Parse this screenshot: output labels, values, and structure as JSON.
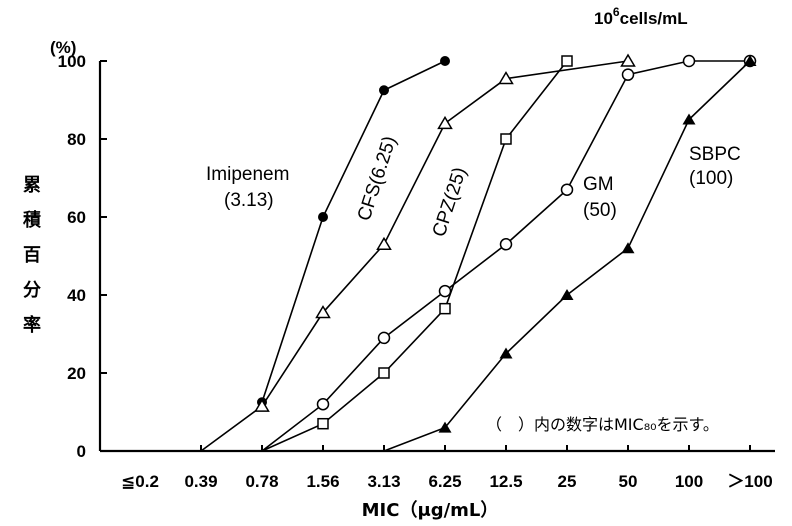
{
  "chart_data": {
    "type": "line",
    "title": "",
    "condition": "10",
    "condition_exp": "6",
    "condition_unit": "cells/mL",
    "y_unit": "(%)",
    "ylabel": [
      "累",
      "積",
      "百",
      "分",
      "率"
    ],
    "xlabel": "MIC（μg/mL）",
    "categories": [
      "≦0.2",
      "0.39",
      "0.78",
      "1.56",
      "3.13",
      "6.25",
      "12.5",
      "25",
      "50",
      "100",
      "＞100"
    ],
    "yticks": [
      "0",
      "20",
      "40",
      "60",
      "80",
      "100"
    ],
    "ylim": [
      0,
      100
    ],
    "grid": false,
    "note": "（　）内の数字はMIC₈₀を示す。",
    "series": [
      {
        "name": "Imipenem",
        "label_value": "(3.13)",
        "marker": "filled-circle",
        "points": [
          {
            "x": 2,
            "y": 12.5
          },
          {
            "x": 3,
            "y": 60
          },
          {
            "x": 4,
            "y": 92.5
          },
          {
            "x": 5,
            "y": 100
          }
        ]
      },
      {
        "name": "CFS",
        "label_value": "(6.25)",
        "marker": "open-triangle",
        "points": [
          {
            "x": 1,
            "y": 0
          },
          {
            "x": 2,
            "y": 11.5
          },
          {
            "x": 3,
            "y": 35.5
          },
          {
            "x": 4,
            "y": 53
          },
          {
            "x": 5,
            "y": 84
          },
          {
            "x": 6,
            "y": 95.5
          },
          {
            "x": 8,
            "y": 100
          }
        ]
      },
      {
        "name": "CPZ",
        "label_value": "(25)",
        "marker": "open-square",
        "points": [
          {
            "x": 2,
            "y": 0
          },
          {
            "x": 3,
            "y": 7
          },
          {
            "x": 4,
            "y": 20
          },
          {
            "x": 5,
            "y": 36.5
          },
          {
            "x": 6,
            "y": 80
          },
          {
            "x": 7,
            "y": 100
          }
        ]
      },
      {
        "name": "GM",
        "label_value": "(50)",
        "marker": "open-circle",
        "points": [
          {
            "x": 2,
            "y": 0
          },
          {
            "x": 3,
            "y": 12
          },
          {
            "x": 4,
            "y": 29
          },
          {
            "x": 5,
            "y": 41
          },
          {
            "x": 6,
            "y": 53
          },
          {
            "x": 7,
            "y": 67
          },
          {
            "x": 8,
            "y": 96.5
          },
          {
            "x": 9,
            "y": 100
          },
          {
            "x": 10,
            "y": 100
          }
        ]
      },
      {
        "name": "SBPC",
        "label_value": "(100)",
        "marker": "filled-triangle",
        "points": [
          {
            "x": 4,
            "y": 0
          },
          {
            "x": 5,
            "y": 6
          },
          {
            "x": 6,
            "y": 25
          },
          {
            "x": 7,
            "y": 40
          },
          {
            "x": 8,
            "y": 52
          },
          {
            "x": 9,
            "y": 85
          },
          {
            "x": 10,
            "y": 100
          }
        ]
      }
    ]
  }
}
